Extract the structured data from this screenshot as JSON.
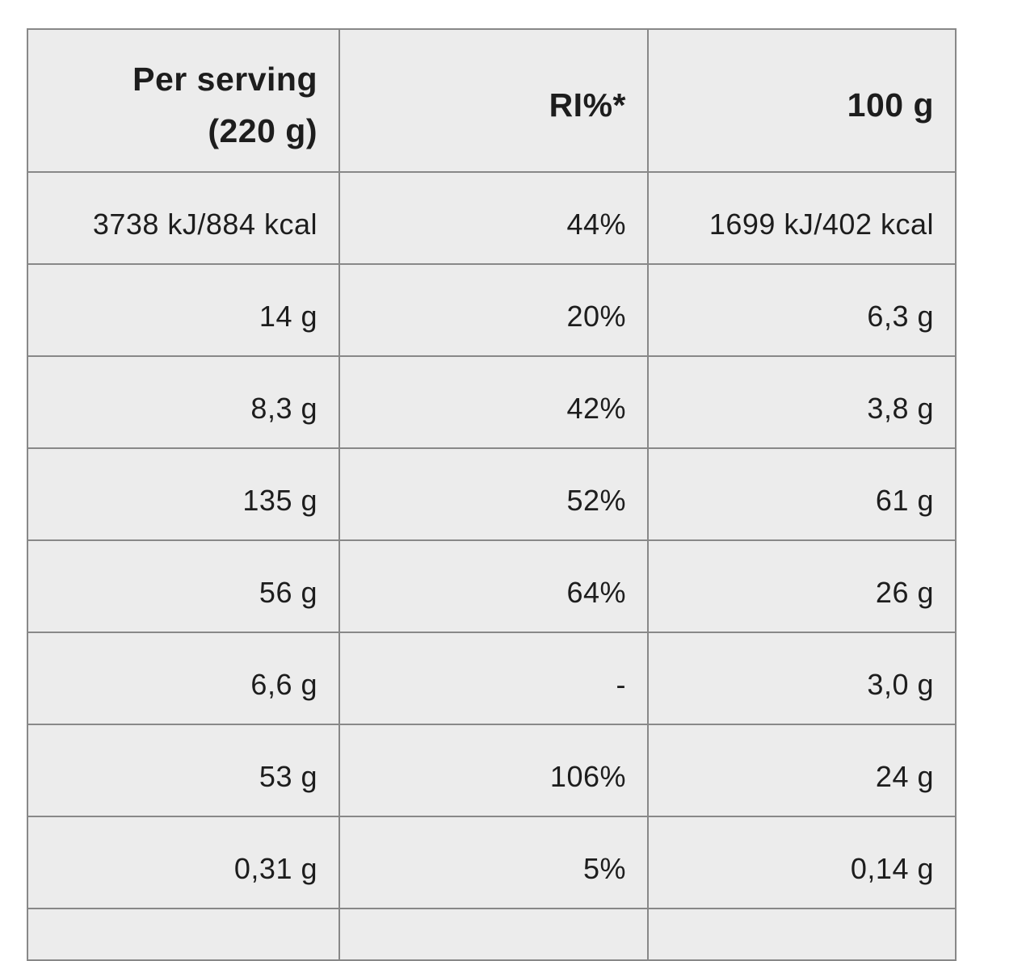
{
  "table": {
    "header": {
      "per_serving_line1": "Per serving",
      "per_serving_line2": "(220 g)",
      "ri_label": "RI%*",
      "per_100g_label": "100 g"
    },
    "rows": [
      [
        "3738 kJ/884 kcal",
        "44%",
        "1699 kJ/402 kcal"
      ],
      [
        "14 g",
        "20%",
        "6,3 g"
      ],
      [
        "8,3 g",
        "42%",
        "3,8 g"
      ],
      [
        "135 g",
        "52%",
        "61 g"
      ],
      [
        "56 g",
        "64%",
        "26 g"
      ],
      [
        "6,6 g",
        "-",
        "3,0 g"
      ],
      [
        "53 g",
        "106%",
        "24 g"
      ],
      [
        "0,31 g",
        "5%",
        "0,14 g"
      ]
    ],
    "partial_ninth_row_visible": true
  },
  "colors": {
    "page_background": "#ffffff",
    "cell_background": "#ececec",
    "border": "#888888",
    "text": "#1d1d1d"
  }
}
